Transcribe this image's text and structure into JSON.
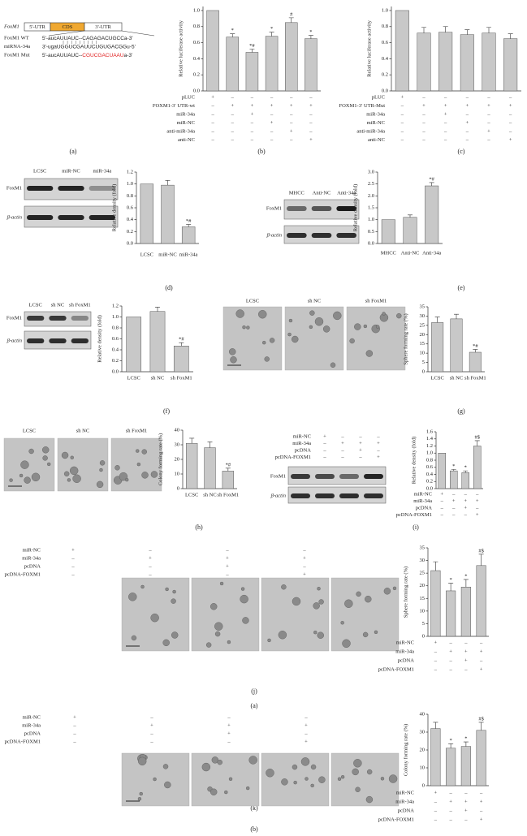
{
  "panel_labels": [
    "(a)",
    "(b)",
    "(c)",
    "(d)",
    "(e)",
    "(f)",
    "(g)",
    "(h)",
    "(i)",
    "(j)",
    "(a)",
    "(k)",
    "(b)"
  ],
  "sequence": {
    "gene": "FoxM1",
    "regions": [
      "5'-UTR",
      "CDS",
      "3'-UTR"
    ],
    "cds_color": "#f0a830",
    "mut_color": "#e02020",
    "rows": [
      {
        "name": "FoxM1 WT",
        "seq": [
          "5'-aucAUUAUC--CAGAGACUGCCa-3'"
        ]
      },
      {
        "name": "miRNA-34a",
        "seq": [
          "3'-ugaUGGUCGAUUCUGUGACGGu-5'"
        ]
      },
      {
        "name": "FoxM1 Mut",
        "seq": [
          "5'-aucAUUAUC--",
          "CGUCGACUAAU",
          "a-3'"
        ]
      }
    ]
  },
  "blots": [
    {
      "lanes": [
        "LCSC",
        "miR-NC",
        "miR-34a"
      ],
      "rows": [
        "FoxM1",
        "β-actin"
      ]
    },
    {
      "lanes": [
        "MHCC",
        "Anti-NC",
        "Anti-34a"
      ],
      "rows": [
        "FoxM1",
        "β-actin"
      ]
    },
    {
      "lanes": [
        "LCSC",
        "sh NC",
        "sh FoxM1"
      ],
      "rows": [
        "FoxM1",
        "β-actin"
      ]
    },
    {
      "rows": [
        "FoxM1",
        "β-actin"
      ]
    }
  ],
  "micrographs": [
    {
      "labels": [
        "LCSC",
        "sh NC",
        "sh FoxM1"
      ]
    },
    {
      "labels": [
        "LCSC",
        "sh NC",
        "sh FoxM1"
      ]
    }
  ],
  "chart_data": [
    {
      "type": "bar",
      "ylabel": "Relative luciferase activity",
      "color": "#c8c8c8",
      "conditions": [
        {
          "label": "pLUC",
          "marks": [
            "+",
            "–",
            "–",
            "–",
            "–",
            "–"
          ]
        },
        {
          "label": "FOXM1-3′ UTR-wt",
          "marks": [
            "–",
            "+",
            "+",
            "+",
            "+",
            "+"
          ]
        },
        {
          "label": "miR-34a",
          "marks": [
            "–",
            "–",
            "+",
            "–",
            "–",
            "–"
          ]
        },
        {
          "label": "miR-NC",
          "marks": [
            "–",
            "–",
            "–",
            "+",
            "–",
            "–"
          ]
        },
        {
          "label": "anti-miR-34a",
          "marks": [
            "–",
            "–",
            "–",
            "–",
            "+",
            "–"
          ]
        },
        {
          "label": "anti-NC",
          "marks": [
            "–",
            "–",
            "–",
            "–",
            "–",
            "+"
          ]
        }
      ],
      "values": [
        1.0,
        0.67,
        0.48,
        0.68,
        0.85,
        0.65
      ],
      "errors": [
        null,
        0.04,
        0.04,
        0.05,
        0.06,
        0.04
      ],
      "value_annotations": [
        null,
        "*",
        "*#",
        "*",
        "#",
        "*"
      ],
      "ylim": [
        0,
        1.05
      ],
      "yticks": [
        {
          "value": 0,
          "label": "0.0"
        },
        0.2,
        0.4,
        0.6,
        0.8,
        {
          "value": 1,
          "label": "1.0"
        }
      ]
    },
    {
      "type": "bar",
      "ylabel": "Relative luciferase activity",
      "color": "#c8c8c8",
      "conditions": [
        {
          "label": "pLUC",
          "marks": [
            "+",
            "–",
            "–",
            "–",
            "–",
            "–"
          ]
        },
        {
          "label": "FOXM1-3′ UTR-Mut",
          "marks": [
            "–",
            "+",
            "+",
            "+",
            "+",
            "+"
          ]
        },
        {
          "label": "miR-34a",
          "marks": [
            "–",
            "–",
            "+",
            "–",
            "–",
            "–"
          ]
        },
        {
          "label": "miR-NC",
          "marks": [
            "–",
            "–",
            "–",
            "+",
            "–",
            "–"
          ]
        },
        {
          "label": "anti-miR-34a",
          "marks": [
            "–",
            "–",
            "–",
            "–",
            "+",
            "–"
          ]
        },
        {
          "label": "anti-NC",
          "marks": [
            "–",
            "–",
            "–",
            "–",
            "–",
            "+"
          ]
        }
      ],
      "values": [
        1.0,
        0.72,
        0.73,
        0.7,
        0.72,
        0.65
      ],
      "errors": [
        null,
        0.07,
        0.07,
        0.06,
        0.07,
        0.06
      ],
      "ylim": [
        0,
        1.05
      ],
      "yticks": [
        {
          "value": 0,
          "label": "0.0"
        },
        0.2,
        0.4,
        0.6,
        0.8,
        {
          "value": 1,
          "label": "1.0"
        }
      ]
    },
    {
      "type": "bar",
      "ylabel": "Relative density (fold)",
      "color": "#c8c8c8",
      "categories": [
        "LCSC",
        "miR-NC",
        "miR-34a"
      ],
      "values": [
        1.0,
        0.98,
        0.28
      ],
      "errors": [
        null,
        0.08,
        0.04
      ],
      "value_annotations": [
        null,
        null,
        "*#"
      ],
      "ylim": [
        0,
        1.2
      ],
      "yticks": [
        {
          "value": 0,
          "label": "0.0"
        },
        0.2,
        0.4,
        0.6,
        0.8,
        {
          "value": 1,
          "label": "1.0"
        },
        1.2
      ]
    },
    {
      "type": "bar",
      "ylabel": "Relative density (fold)",
      "color": "#c8c8c8",
      "categories": [
        "MHCC",
        "Anti-NC",
        "Anti-34a"
      ],
      "values": [
        1.0,
        1.1,
        2.42
      ],
      "errors": [
        null,
        0.1,
        0.14
      ],
      "value_annotations": [
        null,
        null,
        "*#"
      ],
      "ylim": [
        0,
        3
      ],
      "yticks": [
        {
          "value": 0,
          "label": "0.0"
        },
        0.5,
        {
          "value": 1,
          "label": "1.0"
        },
        1.5,
        {
          "value": 2,
          "label": "2.0"
        },
        2.5,
        {
          "value": 3,
          "label": "3.0"
        }
      ]
    },
    {
      "type": "bar",
      "ylabel": "Relative density (fold)",
      "color": "#c8c8c8",
      "categories": [
        "LCSC",
        "sh NC",
        "sh FoxM1"
      ],
      "values": [
        1.0,
        1.1,
        0.47
      ],
      "errors": [
        null,
        0.08,
        0.06
      ],
      "value_annotations": [
        null,
        null,
        "*#"
      ],
      "ylim": [
        0,
        1.2
      ],
      "yticks": [
        {
          "value": 0,
          "label": "0.0"
        },
        0.2,
        0.4,
        0.6,
        0.8,
        {
          "value": 1,
          "label": "1.0"
        },
        1.2
      ]
    },
    {
      "type": "bar",
      "ylabel": "Sphere forming rate (%)",
      "color": "#c8c8c8",
      "categories": [
        "LCSC",
        "sh NC",
        "sh FoxM1"
      ],
      "values": [
        26.5,
        28.5,
        10.5
      ],
      "errors": [
        3,
        2.5,
        1.5
      ],
      "value_annotations": [
        null,
        null,
        "*#"
      ],
      "ylim": [
        0,
        35
      ],
      "yticks": [
        0,
        5,
        10,
        15,
        20,
        25,
        30,
        35
      ]
    },
    {
      "type": "bar",
      "ylabel": "Colony forming rate (%)",
      "color": "#c8c8c8",
      "categories": [
        "LCSC",
        "sh NC",
        "sh FoxM1"
      ],
      "values": [
        31,
        28,
        12
      ],
      "errors": [
        3.5,
        4,
        2
      ],
      "value_annotations": [
        null,
        null,
        "*#"
      ],
      "ylim": [
        0,
        40
      ],
      "yticks": [
        0,
        10,
        20,
        30,
        40
      ]
    },
    {
      "type": "bar",
      "ylabel": "Relative density (fold)",
      "color": "#c8c8c8",
      "conditions": [
        {
          "label": "miR-NC",
          "marks": [
            "+",
            "–",
            "–",
            "–"
          ]
        },
        {
          "label": "miR-34a",
          "marks": [
            "–",
            "+",
            "+",
            "+"
          ]
        },
        {
          "label": "pcDNA",
          "marks": [
            "–",
            "–",
            "+",
            "–"
          ]
        },
        {
          "label": "pcDNA-FOXM1",
          "marks": [
            "–",
            "–",
            "–",
            "+"
          ]
        }
      ],
      "values": [
        1.0,
        0.5,
        0.45,
        1.2
      ],
      "errors": [
        null,
        0.04,
        0.05,
        0.15
      ],
      "value_annotations": [
        null,
        "*",
        "*",
        "#$"
      ],
      "ylim": [
        0,
        1.6
      ],
      "yticks": [
        {
          "value": 0,
          "label": "0.0"
        },
        0.2,
        0.4,
        0.6,
        0.8,
        {
          "value": 1,
          "label": "1.0"
        },
        1.2,
        1.4,
        1.6
      ]
    },
    {
      "type": "bar",
      "ylabel": "Sphere forming rate (%)",
      "color": "#c8c8c8",
      "conditions": [
        {
          "label": "miR-NC",
          "marks": [
            "+",
            "–",
            "–",
            "–"
          ]
        },
        {
          "label": "miR-34a",
          "marks": [
            "–",
            "+",
            "+",
            "+"
          ]
        },
        {
          "label": "pcDNA",
          "marks": [
            "–",
            "–",
            "+",
            "–"
          ]
        },
        {
          "label": "pcDNA-FOXM1",
          "marks": [
            "–",
            "–",
            "–",
            "+"
          ]
        }
      ],
      "values": [
        26,
        18,
        19.5,
        28
      ],
      "errors": [
        3.5,
        3,
        3,
        4.5
      ],
      "value_annotations": [
        null,
        "*",
        "*",
        "#$"
      ],
      "ylim": [
        0,
        35
      ],
      "yticks": [
        0,
        5,
        10,
        15,
        20,
        25,
        30,
        35
      ]
    },
    {
      "type": "bar",
      "ylabel": "Colony forming rate (%)",
      "color": "#c8c8c8",
      "conditions": [
        {
          "label": "miR-NC",
          "marks": [
            "+",
            "–",
            "–",
            "–"
          ]
        },
        {
          "label": "miR-34a",
          "marks": [
            "–",
            "+",
            "+",
            "+"
          ]
        },
        {
          "label": "pcDNA",
          "marks": [
            "–",
            "–",
            "+",
            "–"
          ]
        },
        {
          "label": "pcDNA-FOXM1",
          "marks": [
            "–",
            "–",
            "–",
            "+"
          ]
        }
      ],
      "values": [
        32,
        21,
        22,
        31
      ],
      "errors": [
        3.5,
        2.5,
        2.5,
        4.5
      ],
      "value_annotations": [
        null,
        "*",
        "*",
        "#$"
      ],
      "ylim": [
        0,
        40
      ],
      "yticks": [
        0,
        10,
        20,
        30,
        40
      ]
    }
  ]
}
